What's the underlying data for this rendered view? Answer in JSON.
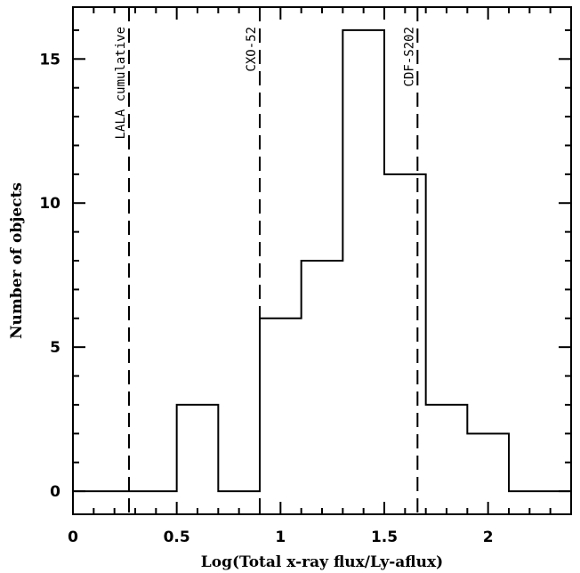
{
  "chart_data": {
    "type": "bar",
    "xlabel": "Log(Total x-ray flux/Ly-aflux)",
    "ylabel": "Number of objects",
    "xlim": [
      0,
      2.4
    ],
    "ylim": [
      -0.8,
      16.8
    ],
    "x_ticks": [
      {
        "value": 0,
        "label": "0"
      },
      {
        "value": 0.5,
        "label": "0.5"
      },
      {
        "value": 1,
        "label": "1"
      },
      {
        "value": 1.5,
        "label": "1.5"
      },
      {
        "value": 2,
        "label": "2"
      }
    ],
    "y_ticks": [
      {
        "value": 0,
        "label": "0"
      },
      {
        "value": 5,
        "label": "5"
      },
      {
        "value": 10,
        "label": "10"
      },
      {
        "value": 15,
        "label": "15"
      }
    ],
    "bin_width": 0.2,
    "bins": [
      {
        "x_start": -0.1,
        "count": 0
      },
      {
        "x_start": 0.1,
        "count": 0
      },
      {
        "x_start": 0.3,
        "count": 0
      },
      {
        "x_start": 0.5,
        "count": 3
      },
      {
        "x_start": 0.7,
        "count": 0
      },
      {
        "x_start": 0.9,
        "count": 6
      },
      {
        "x_start": 1.1,
        "count": 8
      },
      {
        "x_start": 1.3,
        "count": 16
      },
      {
        "x_start": 1.5,
        "count": 11
      },
      {
        "x_start": 1.7,
        "count": 3
      },
      {
        "x_start": 1.9,
        "count": 2
      },
      {
        "x_start": 2.1,
        "count": 0
      }
    ],
    "reference_lines": [
      {
        "x": 0.27,
        "label": "LALA cumulative"
      },
      {
        "x": 0.9,
        "label": "CXO-52"
      },
      {
        "x": 1.66,
        "label": "CDF-S202"
      }
    ],
    "grid": false,
    "legend": "none"
  }
}
